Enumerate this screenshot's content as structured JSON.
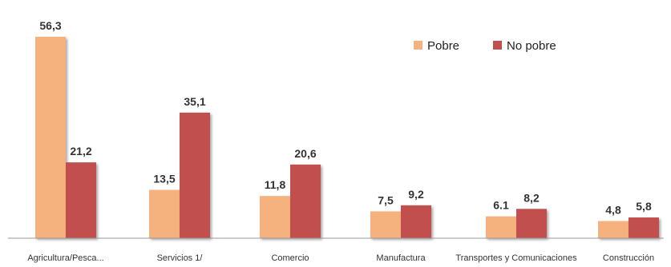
{
  "chart_data": {
    "type": "bar",
    "categories": [
      "Agricultura/Pesca...",
      "Servicios 1/",
      "Comercio",
      "Manufactura",
      "Transportes y Comunicaciones",
      "Construcción"
    ],
    "series": [
      {
        "name": "Pobre",
        "color": "#F5B17E",
        "values": [
          56.3,
          13.5,
          11.8,
          7.5,
          6.1,
          4.8
        ],
        "labels": [
          "56,3",
          "13,5",
          "11,8",
          "7,5",
          "6.1",
          "4,8"
        ]
      },
      {
        "name": "No pobre",
        "color": "#C0504D",
        "values": [
          21.2,
          35.1,
          20.6,
          9.2,
          8.2,
          5.8
        ],
        "labels": [
          "21,2",
          "35,1",
          "20,6",
          "9,2",
          "8,2",
          "5,8"
        ]
      }
    ],
    "ylim": [
      0,
      58
    ],
    "grid": false,
    "legend_position": "top-right"
  }
}
